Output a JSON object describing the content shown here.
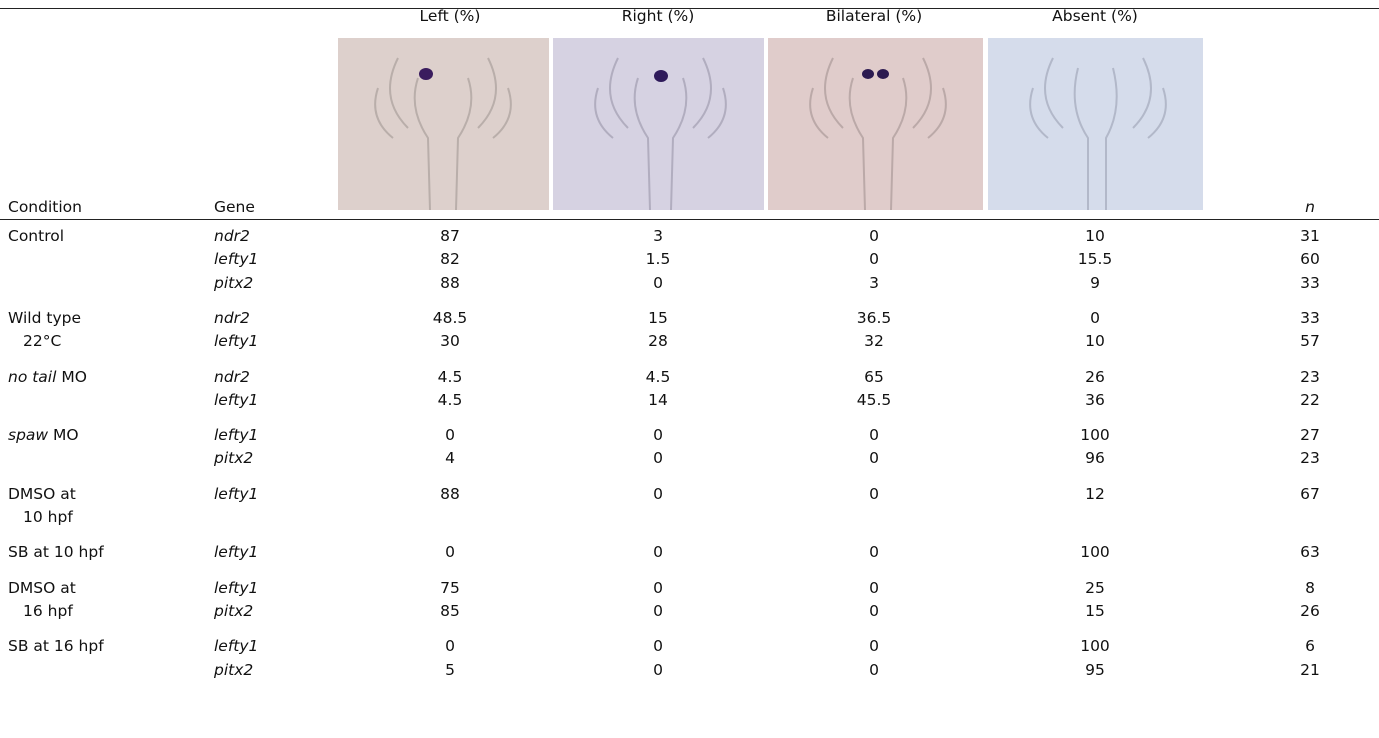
{
  "header": {
    "condition": "Condition",
    "gene": "Gene",
    "columns": [
      "Left (%)",
      "Right (%)",
      "Bilateral (%)",
      "Absent (%)"
    ],
    "n": "n"
  },
  "groups": [
    {
      "condition": [
        [
          {
            "text": "Control",
            "italic": false
          }
        ]
      ],
      "rows": [
        {
          "gene": "ndr2",
          "values": [
            87,
            3,
            0,
            10
          ],
          "n": 31
        },
        {
          "gene": "lefty1",
          "values": [
            82,
            1.5,
            0,
            15.5
          ],
          "n": 60
        },
        {
          "gene": "pitx2",
          "values": [
            88,
            0,
            3,
            9
          ],
          "n": 33
        }
      ]
    },
    {
      "condition": [
        [
          {
            "text": "Wild type",
            "italic": false
          }
        ],
        [
          {
            "text": "22°C",
            "italic": false
          }
        ]
      ],
      "rows": [
        {
          "gene": "ndr2",
          "values": [
            48.5,
            15,
            36.5,
            0
          ],
          "n": 33
        },
        {
          "gene": "lefty1",
          "values": [
            30,
            28,
            32,
            10
          ],
          "n": 57
        }
      ]
    },
    {
      "condition": [
        [
          {
            "text": "no tail",
            "italic": true
          },
          {
            "text": " MO",
            "italic": false
          }
        ]
      ],
      "rows": [
        {
          "gene": "ndr2",
          "values": [
            4.5,
            4.5,
            65,
            26
          ],
          "n": 23
        },
        {
          "gene": "lefty1",
          "values": [
            4.5,
            14,
            45.5,
            36
          ],
          "n": 22
        }
      ]
    },
    {
      "condition": [
        [
          {
            "text": "spaw",
            "italic": true
          },
          {
            "text": " MO",
            "italic": false
          }
        ]
      ],
      "rows": [
        {
          "gene": "lefty1",
          "values": [
            0,
            0,
            0,
            100
          ],
          "n": 27
        },
        {
          "gene": "pitx2",
          "values": [
            4,
            0,
            0,
            96
          ],
          "n": 23
        }
      ]
    },
    {
      "condition": [
        [
          {
            "text": "DMSO at",
            "italic": false
          }
        ],
        [
          {
            "text": "10 hpf",
            "italic": false
          }
        ]
      ],
      "rows": [
        {
          "gene": "lefty1",
          "values": [
            88,
            0,
            0,
            12
          ],
          "n": 67
        }
      ]
    },
    {
      "condition": [
        [
          {
            "text": "SB at 10 hpf",
            "italic": false
          }
        ]
      ],
      "rows": [
        {
          "gene": "lefty1",
          "values": [
            0,
            0,
            0,
            100
          ],
          "n": 63
        }
      ]
    },
    {
      "condition": [
        [
          {
            "text": "DMSO at",
            "italic": false
          }
        ],
        [
          {
            "text": "16 hpf",
            "italic": false
          }
        ]
      ],
      "rows": [
        {
          "gene": "lefty1",
          "values": [
            75,
            0,
            0,
            25
          ],
          "n": 8
        },
        {
          "gene": "pitx2",
          "values": [
            85,
            0,
            0,
            15
          ],
          "n": 26
        }
      ]
    },
    {
      "condition": [
        [
          {
            "text": "SB at 16 hpf",
            "italic": false
          }
        ]
      ],
      "rows": [
        {
          "gene": "lefty1",
          "values": [
            0,
            0,
            0,
            100
          ],
          "n": 6
        },
        {
          "gene": "pitx2",
          "values": [
            5,
            0,
            0,
            95
          ],
          "n": 21
        }
      ]
    }
  ]
}
